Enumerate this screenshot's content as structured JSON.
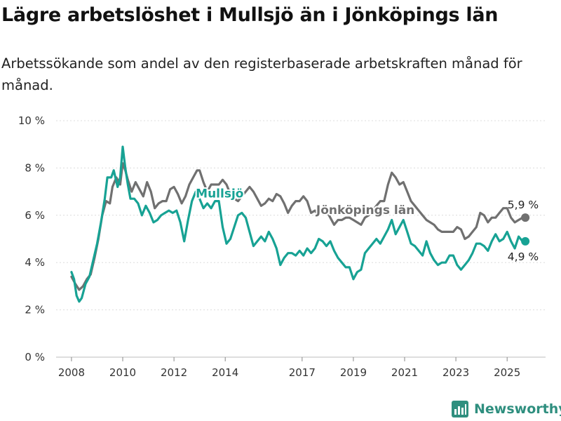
{
  "title": "Lägre arbetslöshet i Mullsjö än i Jönköpings län",
  "subtitle": "Arbetssökande som andel av den registerbaserade arbetskraften månad för månad.",
  "brand": {
    "name": "Newsworthy",
    "icon": "bar-chart-logo-icon",
    "color": "#2f8f7f"
  },
  "chart_data": {
    "type": "line",
    "grid": "horizontal",
    "ylim": [
      0,
      10
    ],
    "yticks": [
      {
        "value": 0,
        "label": "0 %"
      },
      {
        "value": 2,
        "label": "2 %"
      },
      {
        "value": 4,
        "label": "4 %"
      },
      {
        "value": 6,
        "label": "6 %"
      },
      {
        "value": 8,
        "label": "8 %"
      },
      {
        "value": 10,
        "label": "10 %"
      }
    ],
    "xlim": [
      2007.4,
      2026.5
    ],
    "xticks": [
      {
        "value": 2008,
        "label": "2008"
      },
      {
        "value": 2010,
        "label": "2010"
      },
      {
        "value": 2012,
        "label": "2012"
      },
      {
        "value": 2014,
        "label": "2014"
      },
      {
        "value": 2017,
        "label": "2017"
      },
      {
        "value": 2019,
        "label": "2019"
      },
      {
        "value": 2021,
        "label": "2021"
      },
      {
        "value": 2023,
        "label": "2023"
      },
      {
        "value": 2025,
        "label": "2025"
      }
    ],
    "series": [
      {
        "name": "Jönköpings län",
        "color": "#707070",
        "end_label": "5,9 %",
        "points": [
          [
            2008.0,
            3.4
          ],
          [
            2008.15,
            3.1
          ],
          [
            2008.3,
            2.85
          ],
          [
            2008.45,
            3.0
          ],
          [
            2008.6,
            3.3
          ],
          [
            2008.75,
            3.5
          ],
          [
            2008.9,
            4.2
          ],
          [
            2009.05,
            5.0
          ],
          [
            2009.2,
            6.0
          ],
          [
            2009.35,
            6.6
          ],
          [
            2009.5,
            6.5
          ],
          [
            2009.6,
            7.2
          ],
          [
            2009.75,
            7.6
          ],
          [
            2009.9,
            7.3
          ],
          [
            2010.0,
            8.2
          ],
          [
            2010.1,
            7.9
          ],
          [
            2010.2,
            7.5
          ],
          [
            2010.35,
            7.0
          ],
          [
            2010.5,
            7.4
          ],
          [
            2010.65,
            7.1
          ],
          [
            2010.8,
            6.8
          ],
          [
            2010.95,
            7.4
          ],
          [
            2011.1,
            7.0
          ],
          [
            2011.25,
            6.3
          ],
          [
            2011.4,
            6.5
          ],
          [
            2011.55,
            6.6
          ],
          [
            2011.7,
            6.6
          ],
          [
            2011.85,
            7.1
          ],
          [
            2012.0,
            7.2
          ],
          [
            2012.15,
            6.9
          ],
          [
            2012.3,
            6.5
          ],
          [
            2012.45,
            6.8
          ],
          [
            2012.6,
            7.3
          ],
          [
            2012.75,
            7.6
          ],
          [
            2012.9,
            7.9
          ],
          [
            2013.0,
            7.9
          ],
          [
            2013.15,
            7.4
          ],
          [
            2013.3,
            7.0
          ],
          [
            2013.45,
            7.3
          ],
          [
            2013.6,
            7.3
          ],
          [
            2013.75,
            7.3
          ],
          [
            2013.9,
            7.5
          ],
          [
            2014.05,
            7.3
          ],
          [
            2014.2,
            6.9
          ],
          [
            2014.35,
            6.7
          ],
          [
            2014.5,
            6.6
          ],
          [
            2014.65,
            6.8
          ],
          [
            2014.8,
            7.0
          ],
          [
            2014.95,
            7.2
          ],
          [
            2015.1,
            7.0
          ],
          [
            2015.25,
            6.7
          ],
          [
            2015.4,
            6.4
          ],
          [
            2015.55,
            6.5
          ],
          [
            2015.7,
            6.7
          ],
          [
            2015.85,
            6.6
          ],
          [
            2016.0,
            6.9
          ],
          [
            2016.15,
            6.8
          ],
          [
            2016.3,
            6.5
          ],
          [
            2016.45,
            6.1
          ],
          [
            2016.6,
            6.4
          ],
          [
            2016.75,
            6.6
          ],
          [
            2016.9,
            6.6
          ],
          [
            2017.05,
            6.8
          ],
          [
            2017.2,
            6.6
          ],
          [
            2017.35,
            6.1
          ],
          [
            2017.5,
            6.2
          ],
          [
            2017.65,
            6.0
          ],
          [
            2017.8,
            6.3
          ],
          [
            2017.95,
            6.2
          ],
          [
            2018.1,
            5.9
          ],
          [
            2018.25,
            5.6
          ],
          [
            2018.4,
            5.8
          ],
          [
            2018.55,
            5.8
          ],
          [
            2018.7,
            5.9
          ],
          [
            2018.85,
            5.9
          ],
          [
            2019.0,
            5.8
          ],
          [
            2019.15,
            5.7
          ],
          [
            2019.3,
            5.6
          ],
          [
            2019.45,
            5.9
          ],
          [
            2019.6,
            6.0
          ],
          [
            2019.75,
            6.2
          ],
          [
            2019.9,
            6.4
          ],
          [
            2020.05,
            6.6
          ],
          [
            2020.2,
            6.6
          ],
          [
            2020.35,
            7.3
          ],
          [
            2020.5,
            7.8
          ],
          [
            2020.65,
            7.6
          ],
          [
            2020.8,
            7.3
          ],
          [
            2020.95,
            7.4
          ],
          [
            2021.1,
            7.0
          ],
          [
            2021.25,
            6.6
          ],
          [
            2021.4,
            6.4
          ],
          [
            2021.55,
            6.2
          ],
          [
            2021.7,
            6.0
          ],
          [
            2021.85,
            5.8
          ],
          [
            2022.0,
            5.7
          ],
          [
            2022.15,
            5.6
          ],
          [
            2022.3,
            5.4
          ],
          [
            2022.45,
            5.3
          ],
          [
            2022.6,
            5.3
          ],
          [
            2022.75,
            5.3
          ],
          [
            2022.9,
            5.3
          ],
          [
            2023.05,
            5.5
          ],
          [
            2023.2,
            5.4
          ],
          [
            2023.35,
            5.0
          ],
          [
            2023.5,
            5.1
          ],
          [
            2023.65,
            5.3
          ],
          [
            2023.8,
            5.5
          ],
          [
            2023.95,
            6.1
          ],
          [
            2024.1,
            6.0
          ],
          [
            2024.25,
            5.7
          ],
          [
            2024.4,
            5.9
          ],
          [
            2024.55,
            5.9
          ],
          [
            2024.7,
            6.1
          ],
          [
            2024.85,
            6.3
          ],
          [
            2025.0,
            6.3
          ],
          [
            2025.15,
            5.9
          ],
          [
            2025.3,
            5.7
          ],
          [
            2025.45,
            5.8
          ],
          [
            2025.6,
            5.9
          ]
        ]
      },
      {
        "name": "Mullsjö",
        "color": "#17a294",
        "end_label": "4,9 %",
        "points": [
          [
            2008.0,
            3.6
          ],
          [
            2008.1,
            3.3
          ],
          [
            2008.2,
            2.6
          ],
          [
            2008.3,
            2.35
          ],
          [
            2008.4,
            2.5
          ],
          [
            2008.55,
            3.1
          ],
          [
            2008.7,
            3.4
          ],
          [
            2008.85,
            4.1
          ],
          [
            2009.0,
            4.8
          ],
          [
            2009.15,
            5.7
          ],
          [
            2009.3,
            6.7
          ],
          [
            2009.4,
            7.6
          ],
          [
            2009.55,
            7.6
          ],
          [
            2009.65,
            7.9
          ],
          [
            2009.8,
            7.2
          ],
          [
            2009.9,
            7.6
          ],
          [
            2010.0,
            8.9
          ],
          [
            2010.1,
            8.0
          ],
          [
            2010.2,
            7.3
          ],
          [
            2010.3,
            6.7
          ],
          [
            2010.45,
            6.7
          ],
          [
            2010.6,
            6.5
          ],
          [
            2010.75,
            6.0
          ],
          [
            2010.9,
            6.4
          ],
          [
            2011.05,
            6.1
          ],
          [
            2011.2,
            5.7
          ],
          [
            2011.35,
            5.8
          ],
          [
            2011.5,
            6.0
          ],
          [
            2011.65,
            6.1
          ],
          [
            2011.8,
            6.2
          ],
          [
            2011.95,
            6.1
          ],
          [
            2012.1,
            6.2
          ],
          [
            2012.25,
            5.7
          ],
          [
            2012.4,
            4.9
          ],
          [
            2012.55,
            5.8
          ],
          [
            2012.7,
            6.6
          ],
          [
            2012.85,
            7.0
          ],
          [
            2013.0,
            6.7
          ],
          [
            2013.15,
            6.3
          ],
          [
            2013.3,
            6.5
          ],
          [
            2013.45,
            6.3
          ],
          [
            2013.6,
            6.6
          ],
          [
            2013.75,
            6.6
          ],
          [
            2013.9,
            5.5
          ],
          [
            2014.05,
            4.8
          ],
          [
            2014.2,
            5.0
          ],
          [
            2014.35,
            5.5
          ],
          [
            2014.5,
            6.0
          ],
          [
            2014.65,
            6.1
          ],
          [
            2014.8,
            5.9
          ],
          [
            2014.95,
            5.3
          ],
          [
            2015.1,
            4.7
          ],
          [
            2015.25,
            4.9
          ],
          [
            2015.4,
            5.1
          ],
          [
            2015.55,
            4.9
          ],
          [
            2015.7,
            5.3
          ],
          [
            2015.85,
            5.0
          ],
          [
            2016.0,
            4.6
          ],
          [
            2016.15,
            3.9
          ],
          [
            2016.3,
            4.2
          ],
          [
            2016.45,
            4.4
          ],
          [
            2016.6,
            4.4
          ],
          [
            2016.75,
            4.3
          ],
          [
            2016.9,
            4.5
          ],
          [
            2017.05,
            4.3
          ],
          [
            2017.2,
            4.6
          ],
          [
            2017.35,
            4.4
          ],
          [
            2017.5,
            4.6
          ],
          [
            2017.65,
            5.0
          ],
          [
            2017.8,
            4.9
          ],
          [
            2017.95,
            4.7
          ],
          [
            2018.1,
            4.9
          ],
          [
            2018.25,
            4.5
          ],
          [
            2018.4,
            4.2
          ],
          [
            2018.55,
            4.0
          ],
          [
            2018.7,
            3.8
          ],
          [
            2018.85,
            3.8
          ],
          [
            2019.0,
            3.3
          ],
          [
            2019.15,
            3.6
          ],
          [
            2019.3,
            3.7
          ],
          [
            2019.45,
            4.4
          ],
          [
            2019.6,
            4.6
          ],
          [
            2019.75,
            4.8
          ],
          [
            2019.9,
            5.0
          ],
          [
            2020.05,
            4.8
          ],
          [
            2020.2,
            5.1
          ],
          [
            2020.35,
            5.4
          ],
          [
            2020.5,
            5.8
          ],
          [
            2020.65,
            5.2
          ],
          [
            2020.8,
            5.5
          ],
          [
            2020.95,
            5.8
          ],
          [
            2021.1,
            5.3
          ],
          [
            2021.25,
            4.8
          ],
          [
            2021.4,
            4.7
          ],
          [
            2021.55,
            4.5
          ],
          [
            2021.7,
            4.3
          ],
          [
            2021.85,
            4.9
          ],
          [
            2022.0,
            4.4
          ],
          [
            2022.15,
            4.1
          ],
          [
            2022.3,
            3.9
          ],
          [
            2022.45,
            4.0
          ],
          [
            2022.6,
            4.0
          ],
          [
            2022.75,
            4.3
          ],
          [
            2022.9,
            4.3
          ],
          [
            2023.05,
            3.9
          ],
          [
            2023.2,
            3.7
          ],
          [
            2023.35,
            3.9
          ],
          [
            2023.5,
            4.1
          ],
          [
            2023.65,
            4.4
          ],
          [
            2023.8,
            4.8
          ],
          [
            2023.95,
            4.8
          ],
          [
            2024.1,
            4.7
          ],
          [
            2024.25,
            4.5
          ],
          [
            2024.4,
            4.9
          ],
          [
            2024.55,
            5.2
          ],
          [
            2024.7,
            4.9
          ],
          [
            2024.85,
            5.0
          ],
          [
            2025.0,
            5.3
          ],
          [
            2025.15,
            4.9
          ],
          [
            2025.3,
            4.6
          ],
          [
            2025.45,
            5.1
          ],
          [
            2025.6,
            4.9
          ]
        ]
      }
    ]
  }
}
